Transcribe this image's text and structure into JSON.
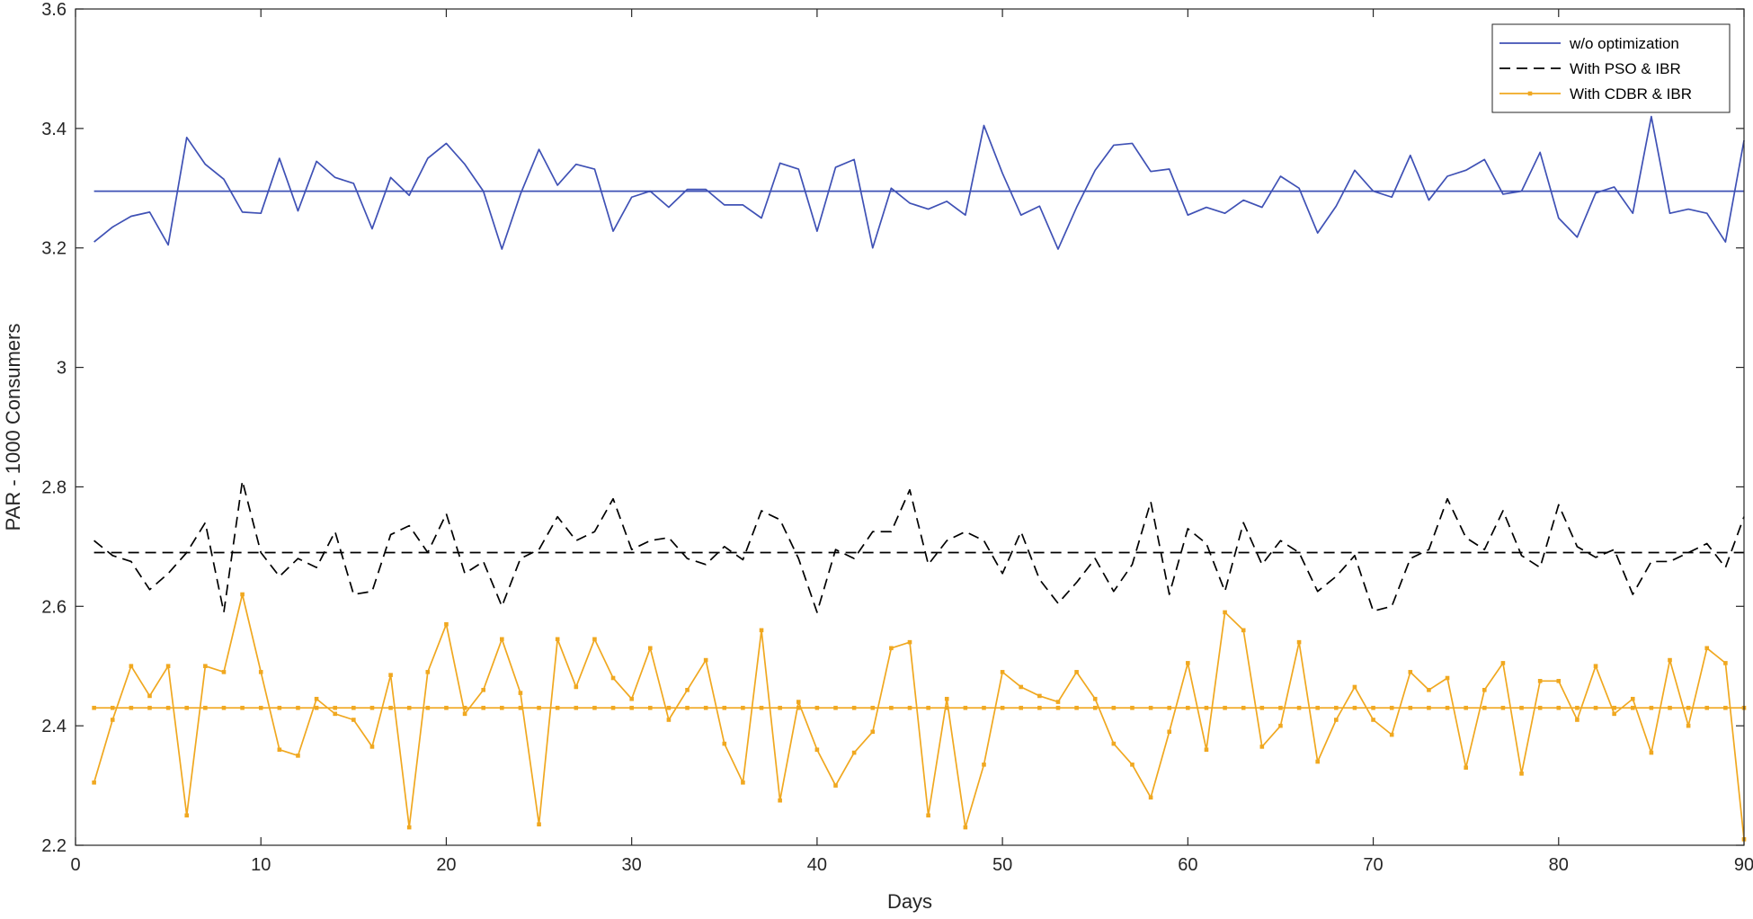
{
  "chart_data": {
    "type": "line",
    "xlabel": "Days",
    "ylabel": "PAR - 1000 Consumers",
    "xlim": [
      0,
      90
    ],
    "ylim": [
      2.2,
      3.6
    ],
    "xticks": [
      0,
      10,
      20,
      30,
      40,
      50,
      60,
      70,
      80,
      90
    ],
    "yticks": [
      2.2,
      2.4,
      2.6,
      2.8,
      3,
      3.2,
      3.4,
      3.6
    ],
    "ytick_labels": [
      "2.2",
      "2.4",
      "2.6",
      "2.8",
      "3",
      "3.2",
      "3.4",
      "3.6"
    ],
    "grid": false,
    "legend_position": "top-right",
    "legend": [
      {
        "label": "w/o optimization",
        "color": "#3f51b5",
        "style": "solid"
      },
      {
        "label": "With PSO & IBR",
        "color": "#000000",
        "style": "dashed"
      },
      {
        "label": "With CDBR & IBR",
        "color": "#f0a820",
        "style": "solid-marker"
      }
    ],
    "x": [
      1,
      2,
      3,
      4,
      5,
      6,
      7,
      8,
      9,
      10,
      11,
      12,
      13,
      14,
      15,
      16,
      17,
      18,
      19,
      20,
      21,
      22,
      23,
      24,
      25,
      26,
      27,
      28,
      29,
      30,
      31,
      32,
      33,
      34,
      35,
      36,
      37,
      38,
      39,
      40,
      41,
      42,
      43,
      44,
      45,
      46,
      47,
      48,
      49,
      50,
      51,
      52,
      53,
      54,
      55,
      56,
      57,
      58,
      59,
      60,
      61,
      62,
      63,
      64,
      65,
      66,
      67,
      68,
      69,
      70,
      71,
      72,
      73,
      74,
      75,
      76,
      77,
      78,
      79,
      80,
      81,
      82,
      83,
      84,
      85,
      86,
      87,
      88,
      89,
      90
    ],
    "series": [
      {
        "legend_index": 0,
        "color": "#3f51b5",
        "dash": "",
        "marker": false,
        "values": [
          3.21,
          3.235,
          3.253,
          3.26,
          3.205,
          3.385,
          3.34,
          3.315,
          3.26,
          3.258,
          3.35,
          3.262,
          3.345,
          3.318,
          3.308,
          3.232,
          3.318,
          3.288,
          3.35,
          3.375,
          3.34,
          3.295,
          3.198,
          3.29,
          3.365,
          3.305,
          3.34,
          3.332,
          3.228,
          3.285,
          3.295,
          3.268,
          3.298,
          3.298,
          3.272,
          3.272,
          3.25,
          3.342,
          3.332,
          3.228,
          3.335,
          3.348,
          3.2,
          3.3,
          3.275,
          3.265,
          3.278,
          3.255,
          3.405,
          3.325,
          3.255,
          3.27,
          3.198,
          3.268,
          3.33,
          3.372,
          3.375,
          3.328,
          3.332,
          3.255,
          3.268,
          3.258,
          3.28,
          3.268,
          3.32,
          3.3,
          3.225,
          3.27,
          3.33,
          3.295,
          3.285,
          3.355,
          3.28,
          3.32,
          3.33,
          3.348,
          3.29,
          3.295,
          3.36,
          3.25,
          3.218,
          3.292,
          3.302,
          3.258,
          3.42,
          3.258,
          3.265,
          3.258,
          3.21,
          3.38
        ]
      },
      {
        "color": "#3f51b5",
        "dash": "",
        "marker": false,
        "values": [
          3.295,
          3.295,
          3.295,
          3.295,
          3.295,
          3.295,
          3.295,
          3.295,
          3.295,
          3.295,
          3.295,
          3.295,
          3.295,
          3.295,
          3.295,
          3.295,
          3.295,
          3.295,
          3.295,
          3.295,
          3.295,
          3.295,
          3.295,
          3.295,
          3.295,
          3.295,
          3.295,
          3.295,
          3.295,
          3.295,
          3.295,
          3.295,
          3.295,
          3.295,
          3.295,
          3.295,
          3.295,
          3.295,
          3.295,
          3.295,
          3.295,
          3.295,
          3.295,
          3.295,
          3.295,
          3.295,
          3.295,
          3.295,
          3.295,
          3.295,
          3.295,
          3.295,
          3.295,
          3.295,
          3.295,
          3.295,
          3.295,
          3.295,
          3.295,
          3.295,
          3.295,
          3.295,
          3.295,
          3.295,
          3.295,
          3.295,
          3.295,
          3.295,
          3.295,
          3.295,
          3.295,
          3.295,
          3.295,
          3.295,
          3.295,
          3.295,
          3.295,
          3.295,
          3.295,
          3.295,
          3.295,
          3.295,
          3.295,
          3.295,
          3.295,
          3.295,
          3.295,
          3.295,
          3.295,
          3.295
        ]
      },
      {
        "legend_index": 1,
        "color": "#000000",
        "dash": "12 7",
        "marker": false,
        "values": [
          2.71,
          2.685,
          2.675,
          2.628,
          2.655,
          2.69,
          2.74,
          2.59,
          2.81,
          2.69,
          2.65,
          2.68,
          2.665,
          2.725,
          2.62,
          2.625,
          2.72,
          2.735,
          2.69,
          2.755,
          2.655,
          2.675,
          2.6,
          2.68,
          2.695,
          2.75,
          2.71,
          2.725,
          2.78,
          2.695,
          2.71,
          2.715,
          2.68,
          2.67,
          2.7,
          2.678,
          2.76,
          2.745,
          2.68,
          2.59,
          2.695,
          2.68,
          2.725,
          2.725,
          2.795,
          2.67,
          2.71,
          2.725,
          2.71,
          2.655,
          2.725,
          2.645,
          2.605,
          2.64,
          2.68,
          2.625,
          2.67,
          2.775,
          2.62,
          2.73,
          2.705,
          2.625,
          2.74,
          2.67,
          2.71,
          2.69,
          2.625,
          2.65,
          2.685,
          2.592,
          2.6,
          2.68,
          2.695,
          2.78,
          2.715,
          2.695,
          2.76,
          2.685,
          2.665,
          2.77,
          2.7,
          2.682,
          2.695,
          2.62,
          2.675,
          2.675,
          2.69,
          2.705,
          2.665,
          2.75
        ]
      },
      {
        "color": "#000000",
        "dash": "12 7",
        "marker": false,
        "values": [
          2.69,
          2.69,
          2.69,
          2.69,
          2.69,
          2.69,
          2.69,
          2.69,
          2.69,
          2.69,
          2.69,
          2.69,
          2.69,
          2.69,
          2.69,
          2.69,
          2.69,
          2.69,
          2.69,
          2.69,
          2.69,
          2.69,
          2.69,
          2.69,
          2.69,
          2.69,
          2.69,
          2.69,
          2.69,
          2.69,
          2.69,
          2.69,
          2.69,
          2.69,
          2.69,
          2.69,
          2.69,
          2.69,
          2.69,
          2.69,
          2.69,
          2.69,
          2.69,
          2.69,
          2.69,
          2.69,
          2.69,
          2.69,
          2.69,
          2.69,
          2.69,
          2.69,
          2.69,
          2.69,
          2.69,
          2.69,
          2.69,
          2.69,
          2.69,
          2.69,
          2.69,
          2.69,
          2.69,
          2.69,
          2.69,
          2.69,
          2.69,
          2.69,
          2.69,
          2.69,
          2.69,
          2.69,
          2.69,
          2.69,
          2.69,
          2.69,
          2.69,
          2.69,
          2.69,
          2.69,
          2.69,
          2.69,
          2.69,
          2.69,
          2.69,
          2.69,
          2.69,
          2.69,
          2.69,
          2.69
        ]
      },
      {
        "legend_index": 2,
        "color": "#f0a820",
        "dash": "",
        "marker": true,
        "values": [
          2.305,
          2.41,
          2.5,
          2.45,
          2.5,
          2.25,
          2.5,
          2.49,
          2.62,
          2.49,
          2.36,
          2.35,
          2.445,
          2.42,
          2.41,
          2.365,
          2.485,
          2.23,
          2.49,
          2.57,
          2.42,
          2.46,
          2.545,
          2.455,
          2.235,
          2.545,
          2.465,
          2.545,
          2.48,
          2.445,
          2.53,
          2.41,
          2.46,
          2.51,
          2.37,
          2.305,
          2.56,
          2.275,
          2.44,
          2.36,
          2.3,
          2.355,
          2.39,
          2.53,
          2.54,
          2.25,
          2.445,
          2.23,
          2.335,
          2.49,
          2.465,
          2.45,
          2.44,
          2.49,
          2.445,
          2.37,
          2.335,
          2.28,
          2.39,
          2.505,
          2.36,
          2.59,
          2.56,
          2.365,
          2.4,
          2.54,
          2.34,
          2.41,
          2.465,
          2.41,
          2.385,
          2.49,
          2.46,
          2.48,
          2.33,
          2.46,
          2.505,
          2.32,
          2.475,
          2.475,
          2.41,
          2.5,
          2.42,
          2.445,
          2.355,
          2.51,
          2.4,
          2.53,
          2.505,
          2.21
        ]
      },
      {
        "color": "#f0a820",
        "dash": "",
        "marker": true,
        "values": [
          2.43,
          2.43,
          2.43,
          2.43,
          2.43,
          2.43,
          2.43,
          2.43,
          2.43,
          2.43,
          2.43,
          2.43,
          2.43,
          2.43,
          2.43,
          2.43,
          2.43,
          2.43,
          2.43,
          2.43,
          2.43,
          2.43,
          2.43,
          2.43,
          2.43,
          2.43,
          2.43,
          2.43,
          2.43,
          2.43,
          2.43,
          2.43,
          2.43,
          2.43,
          2.43,
          2.43,
          2.43,
          2.43,
          2.43,
          2.43,
          2.43,
          2.43,
          2.43,
          2.43,
          2.43,
          2.43,
          2.43,
          2.43,
          2.43,
          2.43,
          2.43,
          2.43,
          2.43,
          2.43,
          2.43,
          2.43,
          2.43,
          2.43,
          2.43,
          2.43,
          2.43,
          2.43,
          2.43,
          2.43,
          2.43,
          2.43,
          2.43,
          2.43,
          2.43,
          2.43,
          2.43,
          2.43,
          2.43,
          2.43,
          2.43,
          2.43,
          2.43,
          2.43,
          2.43,
          2.43,
          2.43,
          2.43,
          2.43,
          2.43,
          2.43,
          2.43,
          2.43,
          2.43,
          2.43,
          2.43
        ]
      }
    ]
  }
}
